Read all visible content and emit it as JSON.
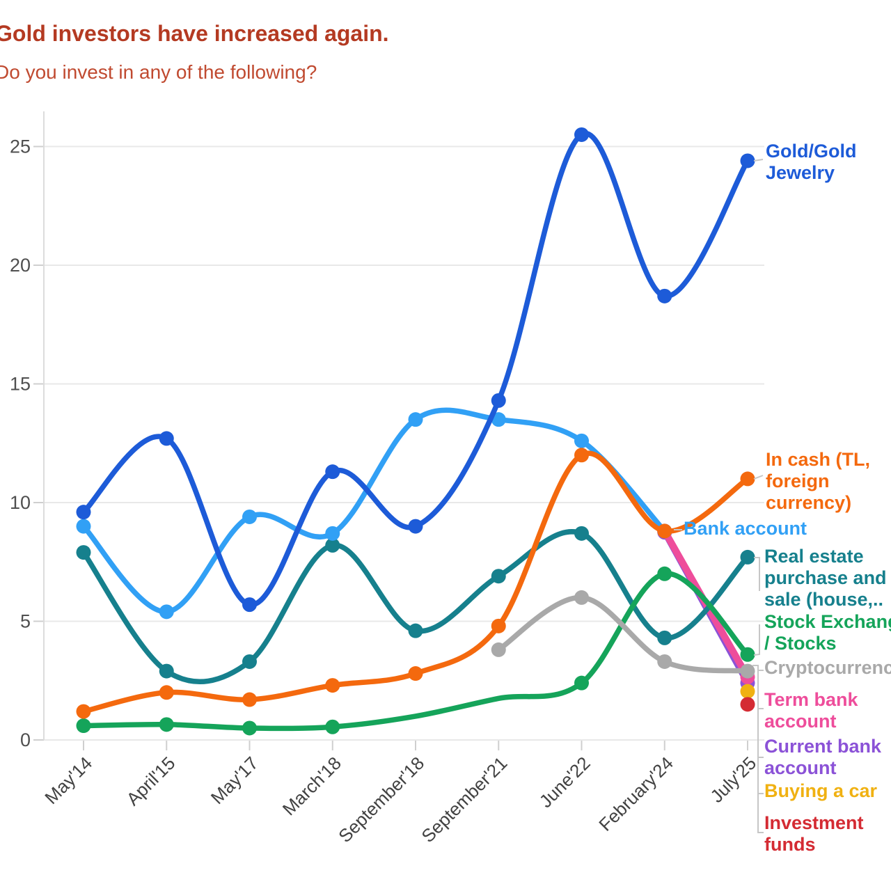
{
  "header": {
    "title": "Gold investors have increased again.",
    "subtitle": "Do you invest in any of the following?"
  },
  "chart_data": {
    "type": "line",
    "title": "Gold investors have increased again.",
    "subtitle": "Do you invest in any of the following?",
    "categories": [
      "May'14",
      "April'15",
      "May'17",
      "March'18",
      "September'18",
      "September'21",
      "June'22",
      "February'24",
      "July'25"
    ],
    "yticks": [
      0,
      5,
      10,
      15,
      20,
      25
    ],
    "ylim": [
      0,
      26.5
    ],
    "grid": true,
    "legend_position": "right-edge-labels",
    "line_style": "smooth-spline",
    "axis_color": "#4f4f4f",
    "series": [
      {
        "id": "gold",
        "label": "Gold/Gold Jewelry",
        "label_lines": [
          "Gold/Gold",
          "Jewelry"
        ],
        "color": "#1d5bd8",
        "values": [
          9.6,
          12.7,
          5.7,
          11.3,
          9.0,
          14.3,
          25.5,
          18.7,
          24.4
        ]
      },
      {
        "id": "cash",
        "label": "In cash (TL, foreign currency)",
        "label_lines": [
          "In cash (TL,",
          "foreign",
          "currency)"
        ],
        "color": "#f4690e",
        "values": [
          1.2,
          2.0,
          1.7,
          2.3,
          2.8,
          4.8,
          12.0,
          8.8,
          11.0
        ]
      },
      {
        "id": "bank-account",
        "label": "Bank account",
        "label_lines": [
          "Bank account"
        ],
        "color": "#31a0f5",
        "values": [
          9.0,
          5.4,
          9.4,
          8.7,
          13.5,
          13.5,
          12.6,
          8.8,
          null
        ]
      },
      {
        "id": "real-estate",
        "label": "Real estate purchase and sale (house,..",
        "label_lines": [
          "Real estate",
          "purchase and",
          "sale (house,.."
        ],
        "color": "#16808d",
        "values": [
          7.9,
          2.9,
          3.3,
          8.2,
          4.6,
          6.9,
          8.7,
          4.3,
          7.7
        ]
      },
      {
        "id": "stocks",
        "label": "Stock Exchange / Stocks",
        "label_lines": [
          "Stock Exchange",
          "/ Stocks"
        ],
        "color": "#15a45a",
        "values": [
          0.6,
          0.65,
          0.5,
          0.55,
          1.0,
          1.75,
          2.4,
          7.0,
          3.6
        ],
        "skip_markers": [
          4,
          5
        ]
      },
      {
        "id": "crypto",
        "label": "Cryptocurrency",
        "label_lines": [
          "Cryptocurrency"
        ],
        "color": "#a9a9a9",
        "values": [
          null,
          null,
          null,
          null,
          null,
          3.8,
          6.0,
          3.3,
          2.9
        ]
      },
      {
        "id": "term-bank",
        "label": "Term bank account",
        "label_lines": [
          "Term bank",
          "account"
        ],
        "color": "#ee4d9b",
        "values": [
          null,
          null,
          null,
          null,
          null,
          null,
          null,
          8.8,
          2.65
        ]
      },
      {
        "id": "current-bank",
        "label": "Current bank account",
        "label_lines": [
          "Current bank",
          "account"
        ],
        "color": "#8b52d7",
        "values": [
          null,
          null,
          null,
          null,
          null,
          null,
          null,
          8.75,
          2.4
        ]
      },
      {
        "id": "buying-car",
        "label": "Buying a car",
        "label_lines": [
          "Buying a car"
        ],
        "color": "#f0b112",
        "values": [
          null,
          null,
          null,
          null,
          null,
          null,
          null,
          null,
          2.05
        ]
      },
      {
        "id": "investment-funds",
        "label": "Investment funds",
        "label_lines": [
          "Investment",
          "funds"
        ],
        "color": "#d42b33",
        "values": [
          null,
          null,
          null,
          null,
          null,
          null,
          null,
          null,
          1.5
        ]
      }
    ]
  }
}
